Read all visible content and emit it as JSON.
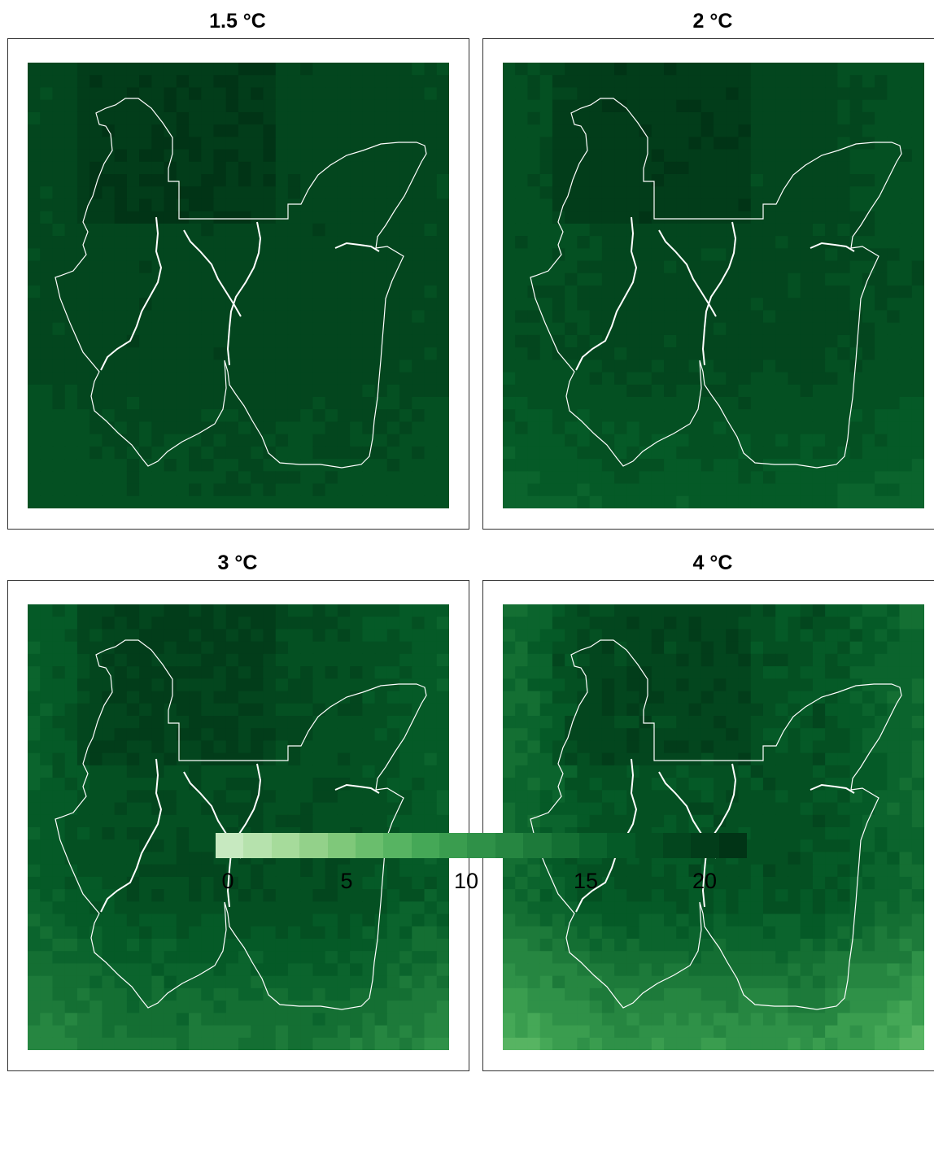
{
  "panels": [
    {
      "title": "1.5 °C",
      "warming": 1.5
    },
    {
      "title": "2 °C",
      "warming": 2
    },
    {
      "title": "3 °C",
      "warming": 3
    },
    {
      "title": "4 °C",
      "warming": 4
    }
  ],
  "legend": {
    "ticks": [
      "0",
      "5",
      "10",
      "15",
      "20"
    ],
    "colors": [
      "#c7e9c0",
      "#b6e2ad",
      "#a6db9b",
      "#93d18a",
      "#7fc87a",
      "#6abe6d",
      "#57b462",
      "#45a857",
      "#3a9d4f",
      "#2f9148",
      "#268641",
      "#1d7a3a",
      "#146f33",
      "#0b642d",
      "#055a27",
      "#045022",
      "#03461e",
      "#023d1a",
      "#013416"
    ]
  }
}
